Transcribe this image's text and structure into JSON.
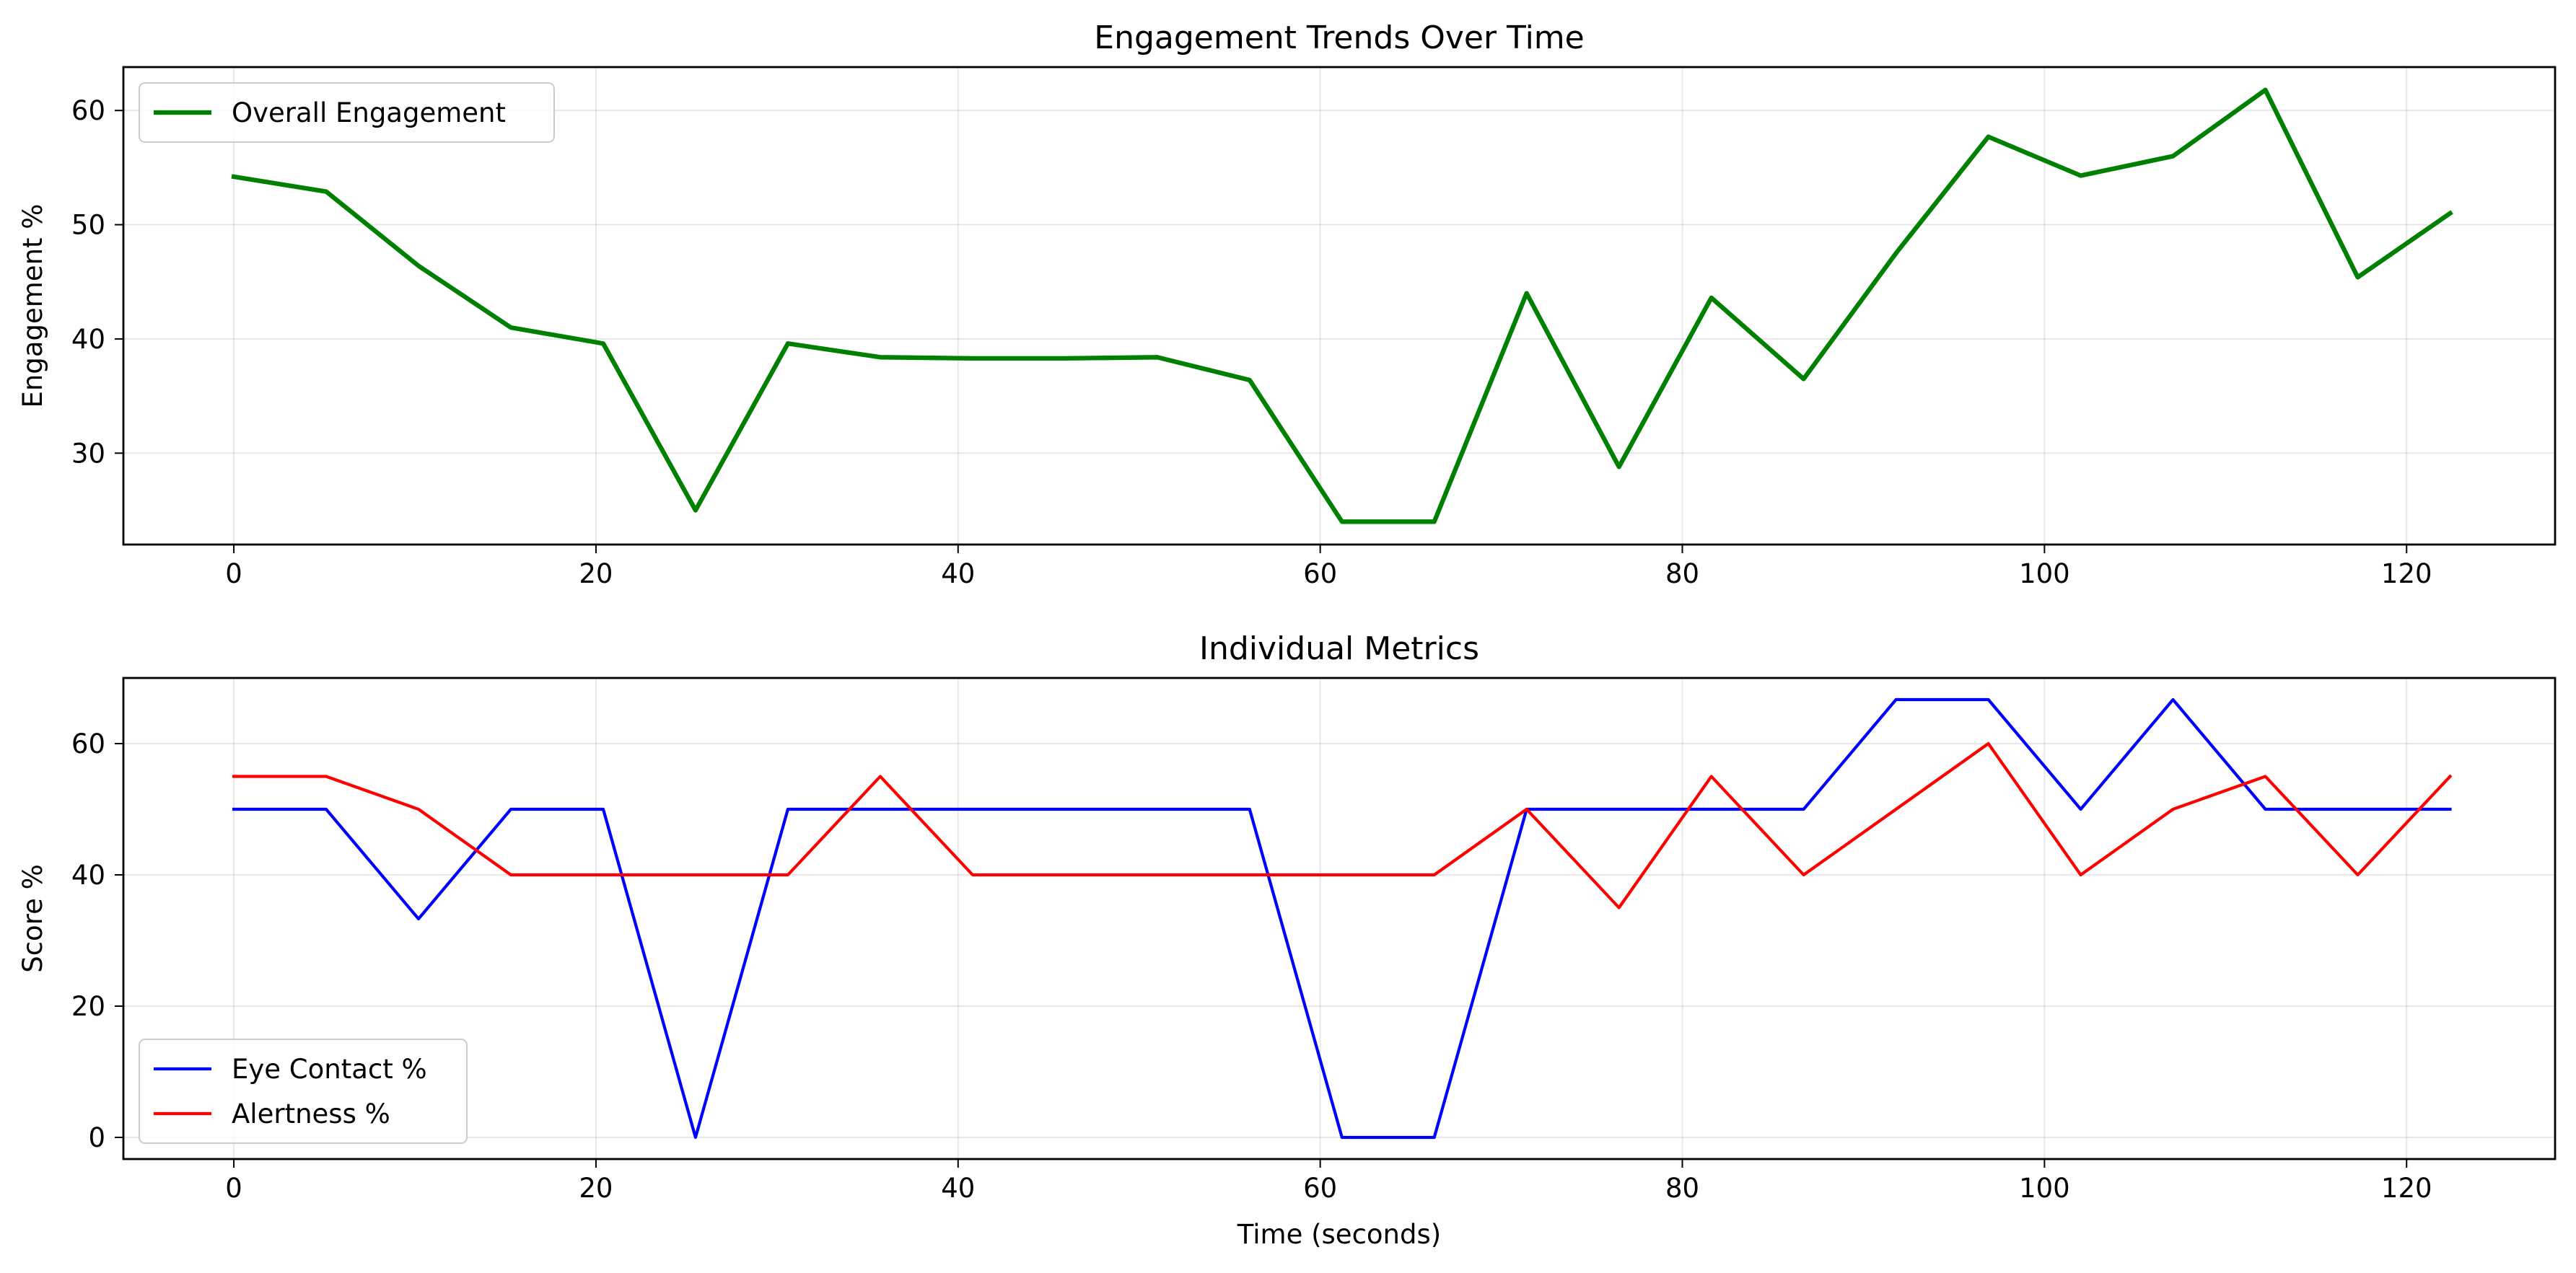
{
  "chart_data": [
    {
      "type": "line",
      "title": "Engagement Trends Over Time",
      "xlabel": "",
      "ylabel": "Engagement %",
      "xlim": [
        -6.1,
        128.2
      ],
      "ylim": [
        22.0,
        63.8
      ],
      "xticks": [
        0,
        20,
        40,
        60,
        80,
        100,
        120
      ],
      "yticks": [
        30,
        40,
        50,
        60
      ],
      "grid": true,
      "legend_position": "upper-left",
      "x": [
        0,
        5.1,
        10.2,
        15.3,
        20.4,
        25.5,
        30.6,
        35.7,
        40.8,
        45.9,
        51.0,
        56.1,
        61.2,
        66.3,
        71.4,
        76.5,
        81.6,
        86.7,
        91.8,
        96.9,
        102.0,
        107.1,
        112.2,
        117.3,
        122.4
      ],
      "series": [
        {
          "name": "Overall Engagement",
          "color": "#008000",
          "line_width": 3,
          "values": [
            54.2,
            52.9,
            46.4,
            41.0,
            39.6,
            25.0,
            39.6,
            38.4,
            38.3,
            38.3,
            38.4,
            36.4,
            24.0,
            24.0,
            44.0,
            28.8,
            43.6,
            36.5,
            47.5,
            57.7,
            54.3,
            56.0,
            61.8,
            45.4,
            51.0
          ]
        }
      ]
    },
    {
      "type": "line",
      "title": "Individual Metrics",
      "xlabel": "Time (seconds)",
      "ylabel": "Score %",
      "xlim": [
        -6.1,
        128.2
      ],
      "ylim": [
        -3.3,
        70.0
      ],
      "xticks": [
        0,
        20,
        40,
        60,
        80,
        100,
        120
      ],
      "yticks": [
        0,
        20,
        40,
        60
      ],
      "grid": true,
      "legend_position": "lower-left",
      "x": [
        0,
        5.1,
        10.2,
        15.3,
        20.4,
        25.5,
        30.6,
        35.7,
        40.8,
        45.9,
        51.0,
        56.1,
        61.2,
        66.3,
        71.4,
        76.5,
        81.6,
        86.7,
        91.8,
        96.9,
        102.0,
        107.1,
        112.2,
        117.3,
        122.4
      ],
      "series": [
        {
          "name": "Eye Contact %",
          "color": "#0000ff",
          "line_width": 2,
          "values": [
            50,
            50,
            33.3,
            50,
            50,
            0,
            50,
            50,
            50,
            50,
            50,
            50,
            0,
            0,
            50,
            50,
            50,
            50,
            66.7,
            66.7,
            50,
            66.7,
            50,
            50,
            50
          ]
        },
        {
          "name": "Alertness %",
          "color": "#ff0000",
          "line_width": 2,
          "values": [
            55,
            55,
            50,
            40,
            40,
            40,
            40,
            55,
            40,
            40,
            40,
            40,
            40,
            40,
            50,
            35,
            55,
            40,
            50,
            60,
            40,
            50,
            55,
            40,
            55
          ]
        }
      ]
    }
  ]
}
